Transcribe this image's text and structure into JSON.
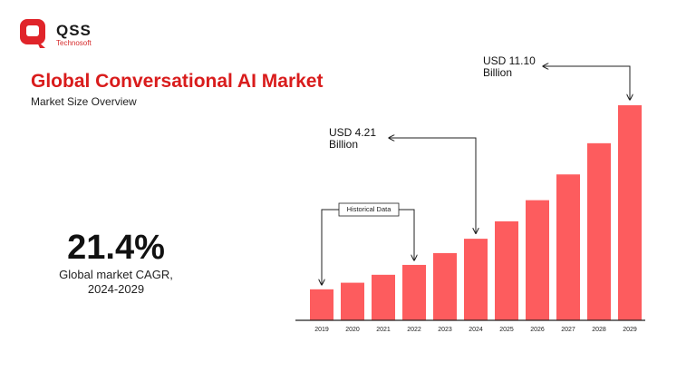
{
  "brand": {
    "name": "QSS",
    "tagline": "Technosoft"
  },
  "stat": {
    "value": "21.4%",
    "label": "Global market CAGR, 2024-2029"
  },
  "chart_data": {
    "type": "bar",
    "title": "Global Conversational AI Market",
    "subtitle": "Market Size Overview",
    "categories": [
      "2019",
      "2020",
      "2021",
      "2022",
      "2023",
      "2024",
      "2025",
      "2026",
      "2027",
      "2028",
      "2029"
    ],
    "values": [
      1.6,
      1.94,
      2.35,
      2.86,
      3.47,
      4.21,
      5.11,
      6.2,
      7.53,
      9.14,
      11.1
    ],
    "value_labels": [
      null,
      null,
      null,
      null,
      null,
      "USD 4.21 Billion",
      null,
      null,
      null,
      null,
      "USD 11.10 Billion"
    ],
    "color": "#fd5c5e",
    "annotations": [
      "Historical Data"
    ]
  }
}
